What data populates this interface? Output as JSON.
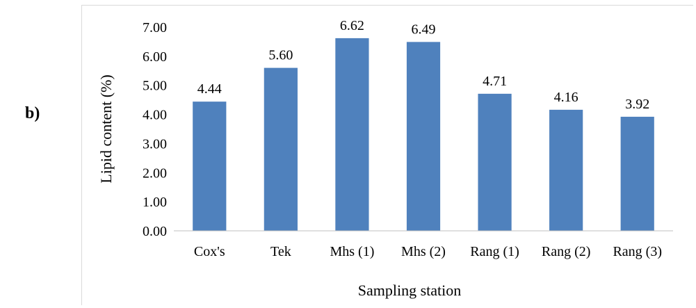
{
  "panel_label": "b)",
  "chart_data": {
    "type": "bar",
    "categories": [
      "Cox's",
      "Tek",
      "Mhs (1)",
      "Mhs (2)",
      "Rang (1)",
      "Rang (2)",
      "Rang (3)"
    ],
    "values": [
      4.44,
      5.6,
      6.62,
      6.49,
      4.71,
      4.16,
      3.92
    ],
    "data_labels": [
      "4.44",
      "5.60",
      "6.62",
      "6.49",
      "4.71",
      "4.16",
      "3.92"
    ],
    "title": "",
    "xlabel": "Sampling station",
    "ylabel": "Lipid content (%)",
    "ylim": [
      0,
      7
    ],
    "yticks": [
      "0.00",
      "1.00",
      "2.00",
      "3.00",
      "4.00",
      "5.00",
      "6.00",
      "7.00"
    ],
    "grid": false,
    "legend": "none",
    "bar_color": "#4f81bd"
  }
}
